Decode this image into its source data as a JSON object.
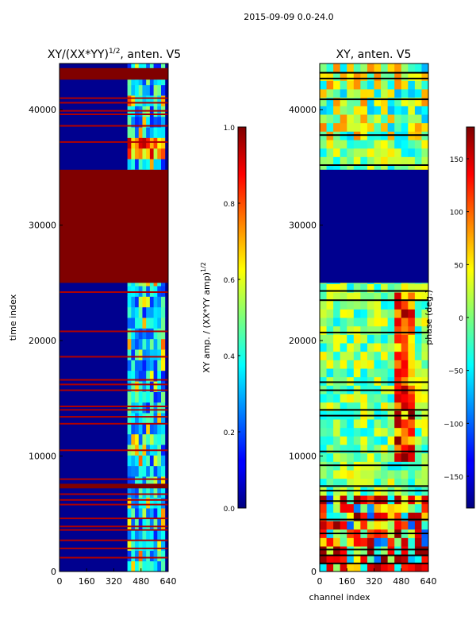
{
  "figure": {
    "suptitle": "2015-09-09 0.0-24.0"
  },
  "chart_data": [
    {
      "type": "heatmap",
      "title": "XY/(XX*YY)",
      "title_sup": "1/2",
      "title_tail": ", anten. V5",
      "xlabel": "",
      "ylabel": "time index",
      "xlim": [
        0,
        640
      ],
      "ylim": [
        0,
        44000
      ],
      "xticks": [
        "0",
        "160",
        "320",
        "480",
        "640"
      ],
      "xtick_values": [
        0,
        160,
        320,
        480,
        640
      ],
      "yticks": [
        "0",
        "10000",
        "20000",
        "30000",
        "40000"
      ],
      "ytick_values": [
        0,
        10000,
        20000,
        30000,
        40000
      ],
      "colormap": "jet",
      "colorbar": {
        "label": "XY amp. / (XX*YY amp)",
        "label_sup": "1/2",
        "range": [
          0.0,
          1.0
        ],
        "ticks": [
          "0.0",
          "0.2",
          "0.4",
          "0.6",
          "0.8",
          "1.0"
        ],
        "tick_values": [
          0.0,
          0.2,
          0.4,
          0.6,
          0.8,
          1.0
        ]
      },
      "regions": [
        {
          "y0": 25000,
          "y1": 34800,
          "value": 1.0,
          "desc": "saturated band"
        },
        {
          "y0": 42600,
          "y1": 43600,
          "value": 1.0,
          "desc": "saturated band"
        },
        {
          "y0": 7200,
          "y1": 7600,
          "value": 1.0,
          "desc": "saturated band"
        }
      ],
      "active_channel_range": [
        400,
        620
      ]
    },
    {
      "type": "heatmap",
      "title": "XY, anten. V5",
      "xlabel": "channel index",
      "ylabel": "",
      "xlim": [
        0,
        640
      ],
      "ylim": [
        0,
        44000
      ],
      "xticks": [
        "0",
        "160",
        "320",
        "480",
        "640"
      ],
      "xtick_values": [
        0,
        160,
        320,
        480,
        640
      ],
      "yticks": [
        "0",
        "10000",
        "20000",
        "30000",
        "40000"
      ],
      "ytick_values": [
        0,
        10000,
        20000,
        30000,
        40000
      ],
      "colormap": "jet",
      "colorbar": {
        "label": "phase (deg.)",
        "range": [
          -180,
          180
        ],
        "ticks": [
          "−150",
          "−100",
          "−50",
          "0",
          "50",
          "100",
          "150"
        ],
        "tick_values": [
          -150,
          -100,
          -50,
          0,
          50,
          100,
          150
        ]
      },
      "regions": [
        {
          "y0": 25000,
          "y1": 34800,
          "value": -180,
          "desc": "flagged band"
        }
      ]
    }
  ]
}
